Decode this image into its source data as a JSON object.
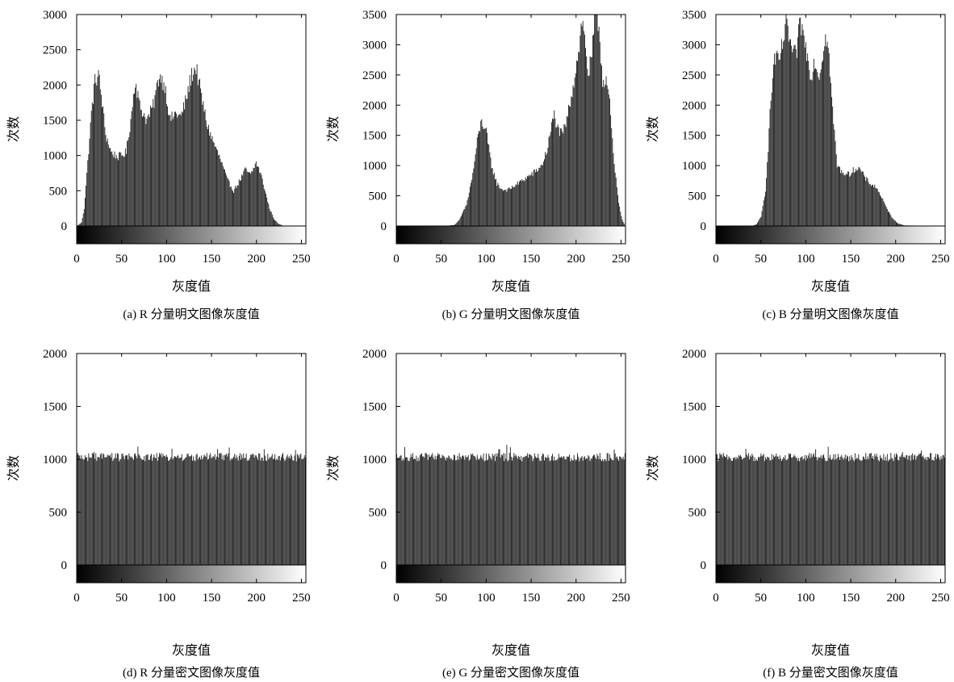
{
  "figure": {
    "background": "#ffffff",
    "bar_color": "#1e1e1e",
    "colorbar": "black-to-white gradient"
  },
  "chart_data": [
    {
      "type": "histogram",
      "caption": "(a) R 分量明文图像灰度值",
      "xlabel": "灰度值",
      "ylabel": "次数",
      "xlim": [
        0,
        255
      ],
      "xticks": [
        0,
        50,
        100,
        150,
        200,
        250
      ],
      "ylim": [
        0,
        3000
      ],
      "yticks": [
        0,
        500,
        1000,
        1500,
        2000,
        2500,
        3000
      ],
      "profile": [
        [
          0,
          0
        ],
        [
          5,
          50
        ],
        [
          8,
          250
        ],
        [
          12,
          900
        ],
        [
          16,
          1600
        ],
        [
          20,
          2050
        ],
        [
          24,
          2150
        ],
        [
          28,
          1750
        ],
        [
          32,
          1300
        ],
        [
          38,
          1050
        ],
        [
          45,
          980
        ],
        [
          50,
          1000
        ],
        [
          55,
          1050
        ],
        [
          60,
          1500
        ],
        [
          65,
          2080
        ],
        [
          70,
          1700
        ],
        [
          78,
          1500
        ],
        [
          85,
          1700
        ],
        [
          92,
          2150
        ],
        [
          98,
          2000
        ],
        [
          104,
          1500
        ],
        [
          110,
          1600
        ],
        [
          116,
          1550
        ],
        [
          122,
          1800
        ],
        [
          128,
          2150
        ],
        [
          133,
          2250
        ],
        [
          138,
          1900
        ],
        [
          145,
          1450
        ],
        [
          152,
          1200
        ],
        [
          160,
          950
        ],
        [
          168,
          650
        ],
        [
          175,
          500
        ],
        [
          182,
          650
        ],
        [
          188,
          800
        ],
        [
          194,
          720
        ],
        [
          200,
          900
        ],
        [
          205,
          750
        ],
        [
          210,
          500
        ],
        [
          215,
          250
        ],
        [
          220,
          100
        ],
        [
          225,
          30
        ],
        [
          230,
          5
        ],
        [
          255,
          0
        ]
      ]
    },
    {
      "type": "histogram",
      "caption": "(b) G 分量明文图像灰度值",
      "xlabel": "灰度值",
      "ylabel": "次数",
      "xlim": [
        0,
        255
      ],
      "xticks": [
        0,
        50,
        100,
        150,
        200,
        250
      ],
      "ylim": [
        0,
        3500
      ],
      "yticks": [
        0,
        500,
        1000,
        1500,
        2000,
        2500,
        3000,
        3500
      ],
      "profile": [
        [
          0,
          0
        ],
        [
          55,
          0
        ],
        [
          65,
          20
        ],
        [
          70,
          100
        ],
        [
          78,
          350
        ],
        [
          85,
          850
        ],
        [
          90,
          1400
        ],
        [
          95,
          1750
        ],
        [
          100,
          1550
        ],
        [
          106,
          1000
        ],
        [
          112,
          700
        ],
        [
          118,
          600
        ],
        [
          125,
          600
        ],
        [
          135,
          700
        ],
        [
          145,
          800
        ],
        [
          155,
          900
        ],
        [
          162,
          1000
        ],
        [
          168,
          1250
        ],
        [
          173,
          1650
        ],
        [
          176,
          1850
        ],
        [
          180,
          1600
        ],
        [
          185,
          1500
        ],
        [
          190,
          1750
        ],
        [
          195,
          2150
        ],
        [
          200,
          2600
        ],
        [
          204,
          3000
        ],
        [
          207,
          3400
        ],
        [
          211,
          3000
        ],
        [
          214,
          2500
        ],
        [
          218,
          2800
        ],
        [
          222,
          3550
        ],
        [
          226,
          3300
        ],
        [
          230,
          2400
        ],
        [
          234,
          2450
        ],
        [
          238,
          2000
        ],
        [
          243,
          1000
        ],
        [
          248,
          400
        ],
        [
          252,
          100
        ],
        [
          255,
          10
        ]
      ]
    },
    {
      "type": "histogram",
      "caption": "(c) B 分量明文图像灰度值",
      "xlabel": "灰度值",
      "ylabel": "次数",
      "xlim": [
        0,
        255
      ],
      "xticks": [
        0,
        50,
        100,
        150,
        200,
        250
      ],
      "ylim": [
        0,
        3500
      ],
      "yticks": [
        0,
        500,
        1000,
        1500,
        2000,
        2500,
        3000,
        3500
      ],
      "profile": [
        [
          0,
          0
        ],
        [
          40,
          0
        ],
        [
          45,
          30
        ],
        [
          50,
          150
        ],
        [
          55,
          600
        ],
        [
          58,
          1300
        ],
        [
          61,
          2100
        ],
        [
          65,
          2800
        ],
        [
          70,
          2700
        ],
        [
          74,
          3000
        ],
        [
          78,
          3300
        ],
        [
          82,
          3100
        ],
        [
          86,
          2800
        ],
        [
          90,
          2900
        ],
        [
          94,
          3400
        ],
        [
          98,
          3100
        ],
        [
          102,
          2800
        ],
        [
          106,
          2500
        ],
        [
          110,
          2750
        ],
        [
          114,
          2500
        ],
        [
          118,
          2700
        ],
        [
          122,
          3250
        ],
        [
          126,
          2800
        ],
        [
          130,
          1900
        ],
        [
          135,
          1000
        ],
        [
          140,
          900
        ],
        [
          148,
          850
        ],
        [
          155,
          950
        ],
        [
          160,
          950
        ],
        [
          166,
          800
        ],
        [
          172,
          700
        ],
        [
          178,
          650
        ],
        [
          184,
          500
        ],
        [
          190,
          300
        ],
        [
          196,
          150
        ],
        [
          202,
          50
        ],
        [
          210,
          10
        ],
        [
          255,
          0
        ]
      ]
    },
    {
      "type": "histogram",
      "caption": "(d) R 分量密文图像灰度值",
      "xlabel": "灰度值",
      "ylabel": "次数",
      "xlim": [
        0,
        255
      ],
      "xticks": [
        0,
        50,
        100,
        150,
        200,
        250
      ],
      "ylim": [
        0,
        2000
      ],
      "yticks": [
        0,
        500,
        1000,
        1500,
        2000
      ],
      "profile": [
        [
          0,
          1020
        ],
        [
          255,
          1020
        ]
      ],
      "noise": 40
    },
    {
      "type": "histogram",
      "caption": "(e) G 分量密文图像灰度值",
      "xlabel": "灰度值",
      "ylabel": "次数",
      "xlim": [
        0,
        255
      ],
      "xticks": [
        0,
        50,
        100,
        150,
        200,
        250
      ],
      "ylim": [
        0,
        2000
      ],
      "yticks": [
        0,
        500,
        1000,
        1500,
        2000
      ],
      "profile": [
        [
          0,
          1020
        ],
        [
          255,
          1020
        ]
      ],
      "noise": 40
    },
    {
      "type": "histogram",
      "caption": "(f) B 分量密文图像灰度值",
      "xlabel": "灰度值",
      "ylabel": "次数",
      "xlim": [
        0,
        255
      ],
      "xticks": [
        0,
        50,
        100,
        150,
        200,
        250
      ],
      "ylim": [
        0,
        2000
      ],
      "yticks": [
        0,
        500,
        1000,
        1500,
        2000
      ],
      "profile": [
        [
          0,
          1020
        ],
        [
          255,
          1020
        ]
      ],
      "noise": 40
    }
  ]
}
